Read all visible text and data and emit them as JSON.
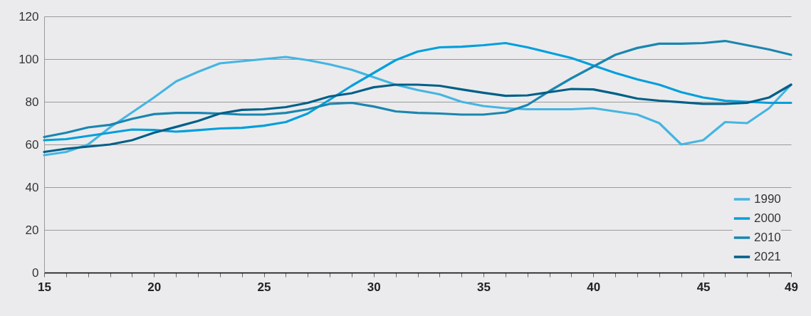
{
  "chart_data": {
    "type": "line",
    "x": [
      15,
      16,
      17,
      18,
      19,
      20,
      21,
      22,
      23,
      24,
      25,
      26,
      27,
      28,
      29,
      30,
      31,
      32,
      33,
      34,
      35,
      36,
      37,
      38,
      39,
      40,
      41,
      42,
      43,
      44,
      45,
      46,
      47,
      48,
      49
    ],
    "series": [
      {
        "name": "1990",
        "color": "#45b5e2",
        "values": [
          55,
          56.5,
          60,
          68,
          75,
          82,
          89.5,
          94,
          98,
          99,
          100,
          101,
          99.5,
          97.5,
          95,
          91.5,
          88,
          85.5,
          83.5,
          80,
          78,
          77,
          76.5,
          76.5,
          76.5,
          77,
          75.5,
          74,
          70,
          60,
          62,
          70.5,
          70,
          77,
          88
        ]
      },
      {
        "name": "2000",
        "color": "#009fdc",
        "values": [
          62,
          62.5,
          64,
          65.5,
          67,
          66.8,
          66,
          66.7,
          67.5,
          67.8,
          68.8,
          70.5,
          74.5,
          81,
          87.5,
          93.5,
          99.5,
          103.5,
          105.5,
          105.8,
          106.5,
          107.5,
          105.5,
          103,
          100.5,
          97,
          93.5,
          90.5,
          88,
          84.5,
          82,
          80.5,
          80,
          79.5,
          79.5
        ]
      },
      {
        "name": "2010",
        "color": "#1a86b0",
        "values": [
          63.5,
          65.5,
          68,
          69.2,
          72,
          74.2,
          74.8,
          74.8,
          74.5,
          74,
          74,
          74.8,
          76.5,
          79,
          79.5,
          77.8,
          75.5,
          74.8,
          74.5,
          74,
          74,
          75,
          78.5,
          85,
          91,
          96.5,
          102,
          105.2,
          107.2,
          107.2,
          107.5,
          108.5,
          106.5,
          104.5,
          102
        ]
      },
      {
        "name": "2021",
        "color": "#005f88",
        "values": [
          56.5,
          58,
          59,
          60,
          62,
          65.5,
          68.2,
          71,
          74.5,
          76.2,
          76.5,
          77.5,
          79.5,
          82.5,
          84,
          86.8,
          88,
          88,
          87.5,
          85.8,
          84.2,
          82.8,
          83,
          84.5,
          86,
          85.8,
          83.8,
          81.5,
          80.5,
          79.8,
          79,
          79,
          79.5,
          82,
          88
        ]
      }
    ],
    "xlim": [
      15,
      49
    ],
    "xticks": [
      15,
      {
        "value": 16,
        "label": null
      },
      {
        "value": 17,
        "label": null
      },
      {
        "value": 18,
        "label": null
      },
      {
        "value": 19,
        "label": null
      },
      20,
      {
        "value": 21,
        "label": null
      },
      {
        "value": 22,
        "label": null
      },
      {
        "value": 23,
        "label": null
      },
      {
        "value": 24,
        "label": null
      },
      25,
      {
        "value": 26,
        "label": null
      },
      {
        "value": 27,
        "label": null
      },
      {
        "value": 28,
        "label": null
      },
      {
        "value": 29,
        "label": null
      },
      30,
      {
        "value": 31,
        "label": null
      },
      {
        "value": 32,
        "label": null
      },
      {
        "value": 33,
        "label": null
      },
      {
        "value": 34,
        "label": null
      },
      35,
      {
        "value": 36,
        "label": null
      },
      {
        "value": 37,
        "label": null
      },
      {
        "value": 38,
        "label": null
      },
      {
        "value": 39,
        "label": null
      },
      40,
      {
        "value": 41,
        "label": null
      },
      {
        "value": 42,
        "label": null
      },
      {
        "value": 43,
        "label": null
      },
      {
        "value": 44,
        "label": null
      },
      45,
      {
        "value": 46,
        "label": null
      },
      {
        "value": 47,
        "label": null
      },
      {
        "value": 48,
        "label": null
      },
      49
    ],
    "ylim": [
      0,
      120
    ],
    "yticks": [
      0,
      20,
      40,
      60,
      80,
      100,
      120
    ],
    "grid": "y",
    "legend": "bottom right",
    "line_style": "solid"
  }
}
